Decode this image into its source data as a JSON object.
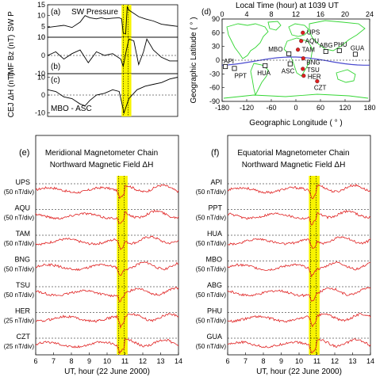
{
  "chart_data": [
    {
      "type": "line",
      "panel": "(a)",
      "title": "SW Pressure",
      "ylabel": "SW P",
      "ylim": [
        0,
        15
      ],
      "yticks": [
        0,
        5,
        10,
        15
      ],
      "xlim": [
        6,
        14
      ],
      "shaded_interval": [
        10.55,
        11.15
      ],
      "dotted_times": [
        10.65,
        10.95
      ],
      "series": [
        {
          "points": [
            [
              6,
              4.5
            ],
            [
              6.5,
              5
            ],
            [
              7,
              5.5
            ],
            [
              7.5,
              4.5
            ],
            [
              8,
              7
            ],
            [
              8.3,
              10
            ],
            [
              8.6,
              9
            ],
            [
              9,
              8.5
            ],
            [
              9.3,
              9
            ],
            [
              9.6,
              8.5
            ],
            [
              10,
              8.8
            ],
            [
              10.4,
              9
            ],
            [
              10.55,
              8.5
            ],
            [
              10.65,
              2
            ],
            [
              10.8,
              1.5
            ],
            [
              10.9,
              14
            ],
            [
              11,
              12.5
            ],
            [
              11.3,
              11
            ],
            [
              11.6,
              9.5
            ],
            [
              12,
              8.5
            ],
            [
              12.5,
              7.5
            ],
            [
              13,
              6
            ],
            [
              13.5,
              5.5
            ],
            [
              14,
              5
            ]
          ]
        }
      ]
    },
    {
      "type": "line",
      "panel": "(b)",
      "ylabel": "IMF Bz (nT)",
      "ylim": [
        -10,
        10
      ],
      "yticks": [
        -10,
        0,
        10
      ],
      "xlim": [
        6,
        14
      ],
      "series": [
        {
          "points": [
            [
              6,
              0
            ],
            [
              6.5,
              2
            ],
            [
              7,
              -2
            ],
            [
              7.5,
              1
            ],
            [
              8,
              3
            ],
            [
              8.5,
              -4
            ],
            [
              9,
              2
            ],
            [
              9.5,
              0
            ],
            [
              10,
              1
            ],
            [
              10.5,
              -2
            ],
            [
              10.65,
              -6
            ],
            [
              10.85,
              3
            ],
            [
              11,
              9
            ],
            [
              11.3,
              8
            ],
            [
              11.6,
              -5
            ],
            [
              11.9,
              2
            ],
            [
              12.1,
              9
            ],
            [
              12.5,
              3
            ],
            [
              13,
              -1
            ],
            [
              13.5,
              -3
            ],
            [
              14,
              -3
            ]
          ]
        }
      ]
    },
    {
      "type": "line",
      "panel": "(c)",
      "title": "MBO - ASC",
      "ylabel": "CEJ ΔH (nT)",
      "ylim": [
        -12,
        12
      ],
      "yticks": [
        -10,
        0,
        10
      ],
      "xlim": [
        6,
        14
      ],
      "series": [
        {
          "points": [
            [
              6,
              3
            ],
            [
              6.5,
              2
            ],
            [
              7,
              -1
            ],
            [
              7.5,
              -2
            ],
            [
              8,
              -5
            ],
            [
              8.3,
              -6
            ],
            [
              8.6,
              -3
            ],
            [
              9,
              0
            ],
            [
              9.5,
              1
            ],
            [
              10,
              3
            ],
            [
              10.4,
              2
            ],
            [
              10.55,
              -4
            ],
            [
              10.7,
              -10
            ],
            [
              10.85,
              -6
            ],
            [
              11,
              -2
            ],
            [
              11.5,
              3
            ],
            [
              12,
              5
            ],
            [
              12.5,
              6
            ],
            [
              13,
              7
            ],
            [
              13.5,
              9
            ],
            [
              14,
              10
            ]
          ]
        }
      ]
    },
    {
      "type": "line",
      "panel": "(e)",
      "title": "Meridional Magnetometer Chain",
      "subtitle": "Northward Magnetic Field  ΔH",
      "xlabel": "UT, hour (22 June 2000)",
      "xlim": [
        6,
        14
      ],
      "xticks": [
        6,
        7,
        8,
        9,
        10,
        11,
        12,
        13,
        14
      ],
      "stations": [
        "UPS",
        "AQU",
        "TAM",
        "BNG",
        "TSU",
        "HER",
        "CZT"
      ],
      "scales": [
        "(50 nT/div)",
        "(50 nT/div)",
        "(50 nT/div)",
        "(50 nT/div)",
        "(50 nT/div)",
        "(25 nT/div)",
        "(25 nT/div)"
      ],
      "shaded_interval": [
        10.55,
        11.15
      ]
    },
    {
      "type": "line",
      "panel": "(f)",
      "title": "Equatorial Magnetometer Chain",
      "subtitle": "Northward Magnetic Field  ΔH",
      "xlabel": "UT, hour (22 June 2000)",
      "xlim": [
        6,
        14
      ],
      "xticks": [
        6,
        7,
        8,
        9,
        10,
        11,
        12,
        13,
        14
      ],
      "stations": [
        "API",
        "PPT",
        "HUA",
        "MBO",
        "ABG",
        "PHU",
        "GUA"
      ],
      "scales": [
        "(50 nT/div)",
        "(50 nT/div)",
        "(50 nT/div)",
        "(50 nT/div)",
        "(50 nT/div)",
        "(50 nT/div)",
        "(50 nT/div)"
      ],
      "shaded_interval": [
        10.55,
        11.15
      ]
    }
  ],
  "map": {
    "panel": "(d)",
    "title": "Local Time (hour) at 1039 UT",
    "top_ticks": [
      "0",
      "4",
      "8",
      "12",
      "16",
      "20",
      "24"
    ],
    "xlabel": "Geographic Longitude  ( ° )",
    "ylabel": "Geographic Latitude  ( ° )",
    "xticks": [
      "-180",
      "-120",
      "-60",
      "0",
      "60",
      "120",
      "180"
    ],
    "yticks": [
      "-90",
      "-60",
      "-30",
      "0",
      "30",
      "60",
      "90"
    ],
    "stations": [
      {
        "name": "UPS",
        "lon": 17,
        "lat": 60,
        "symbol": "dot-red"
      },
      {
        "name": "AQU",
        "lon": 13,
        "lat": 42,
        "symbol": "dot-red"
      },
      {
        "name": "TAM",
        "lon": 5,
        "lat": 23,
        "symbol": "dot-red"
      },
      {
        "name": "BNG",
        "lon": 18,
        "lat": 4,
        "symbol": "dot-red"
      },
      {
        "name": "TSU",
        "lon": 17,
        "lat": -19,
        "symbol": "dot-red"
      },
      {
        "name": "HER",
        "lon": 19,
        "lat": -34,
        "symbol": "dot-red"
      },
      {
        "name": "CZT",
        "lon": 52,
        "lat": -46,
        "symbol": "dot-red"
      },
      {
        "name": "MBO",
        "lon": -17,
        "lat": 14,
        "symbol": "square"
      },
      {
        "name": "ASC",
        "lon": -14,
        "lat": -8,
        "symbol": "square"
      },
      {
        "name": "HUA",
        "lon": -75,
        "lat": -12,
        "symbol": "square"
      },
      {
        "name": "API",
        "lon": -172,
        "lat": -14,
        "symbol": "square"
      },
      {
        "name": "PPT",
        "lon": -150,
        "lat": -18,
        "symbol": "square"
      },
      {
        "name": "ABG",
        "lon": 73,
        "lat": 19,
        "symbol": "square"
      },
      {
        "name": "PHU",
        "lon": 106,
        "lat": 21,
        "symbol": "square"
      },
      {
        "name": "GUA",
        "lon": 145,
        "lat": 13,
        "symbol": "square"
      }
    ]
  }
}
